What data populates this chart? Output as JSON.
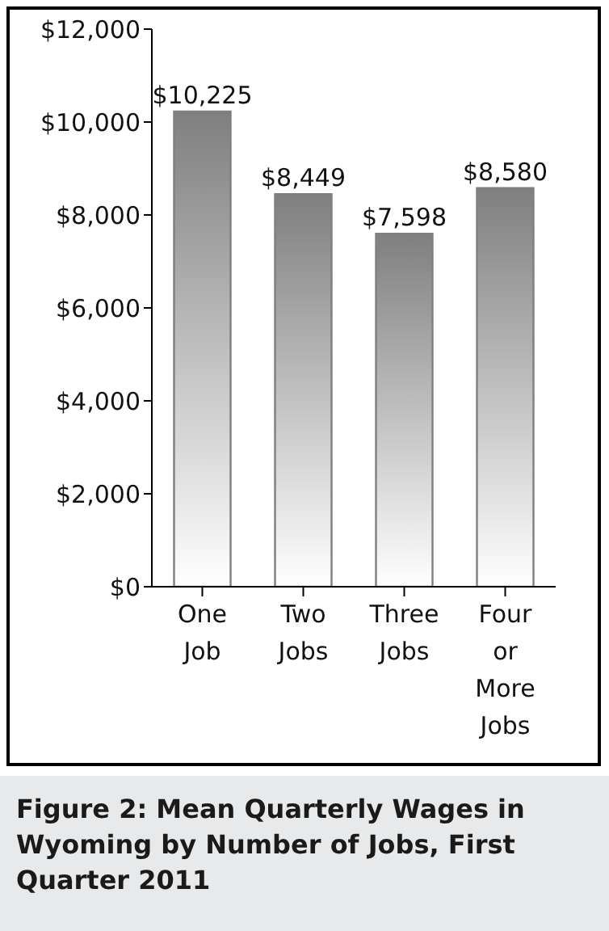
{
  "chart_data": {
    "type": "bar",
    "title": "Figure 2: Mean Quarterly Wages in Wyoming by Number of Jobs, First Quarter 2011",
    "categories": [
      "One Job",
      "Two Jobs",
      "Three Jobs",
      "Four or More Jobs"
    ],
    "values": [
      10225,
      8449,
      7598,
      8580
    ],
    "value_labels": [
      "$10,225",
      "$8,449",
      "$7,598",
      "$8,580"
    ],
    "color": "#7f7f7f",
    "ylim": [
      0,
      12000
    ],
    "yticks": [
      {
        "value": 0,
        "label": "$0"
      },
      {
        "value": 2000,
        "label": "$2,000"
      },
      {
        "value": 4000,
        "label": "$4,000"
      },
      {
        "value": 6000,
        "label": "$6,000"
      },
      {
        "value": 8000,
        "label": "$8,000"
      },
      {
        "value": 10000,
        "label": "$10,000"
      },
      {
        "value": 12000,
        "label": "$12,000"
      }
    ],
    "grid": false
  }
}
